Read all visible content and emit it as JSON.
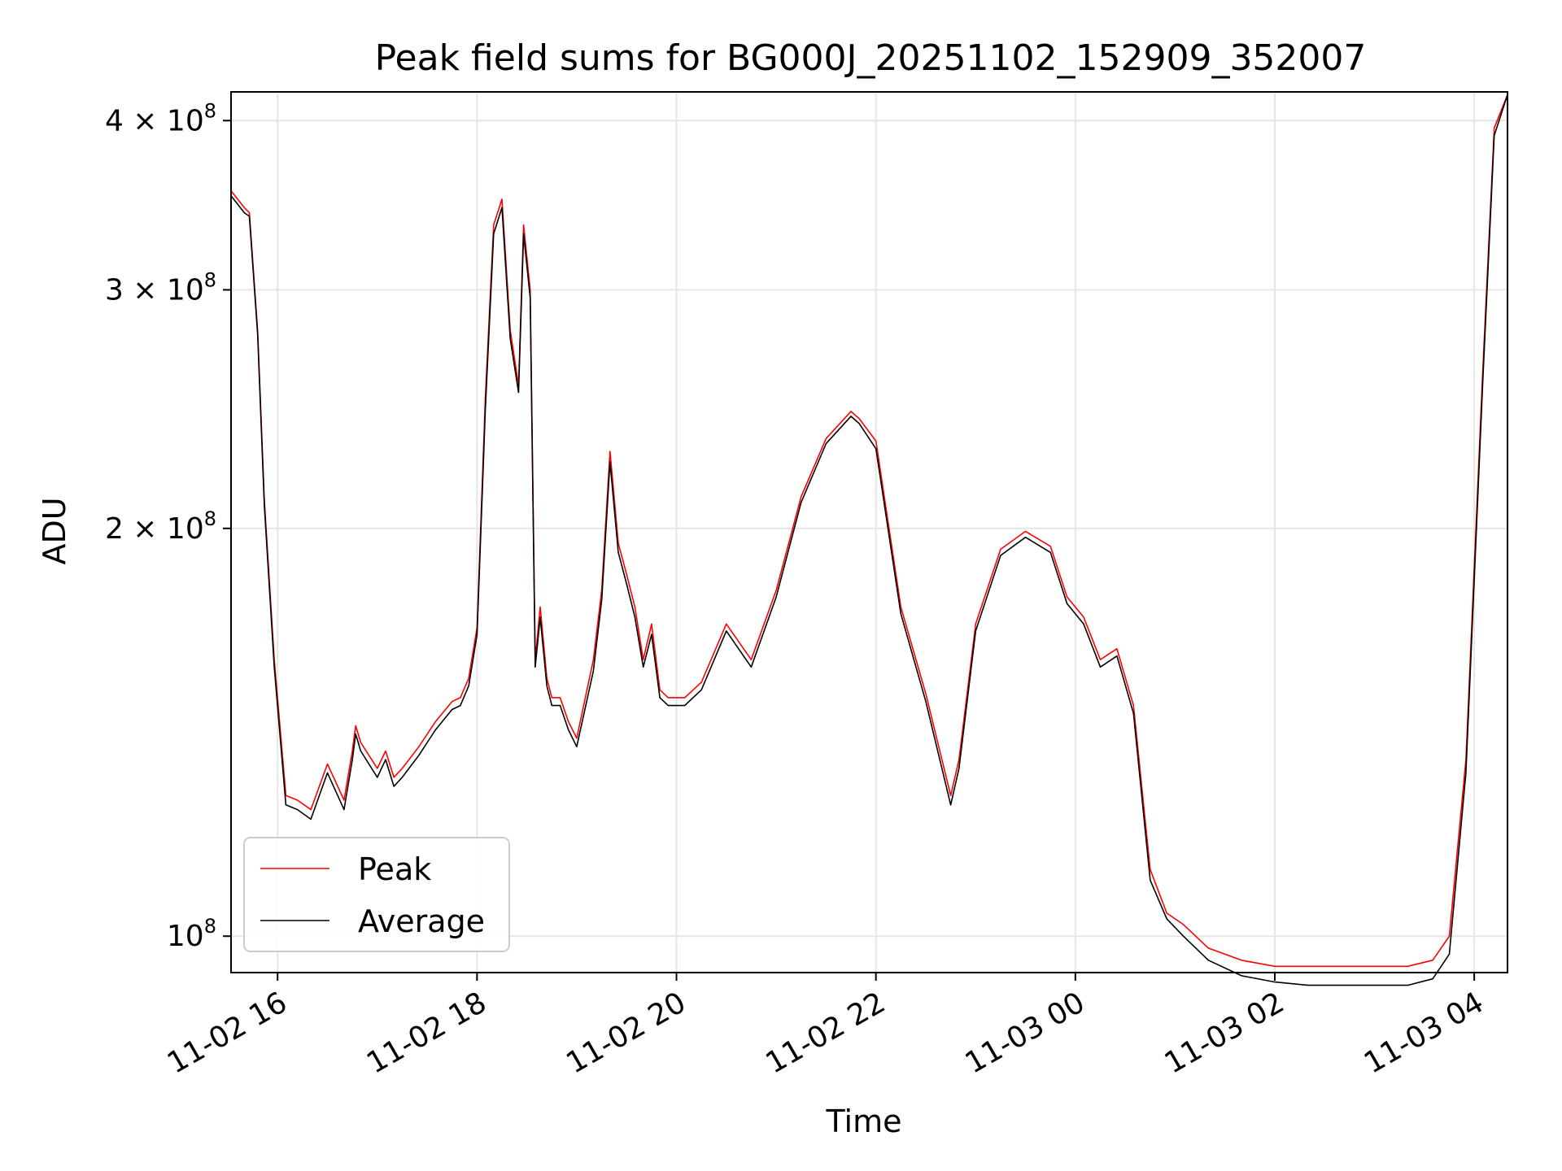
{
  "chart_data": {
    "type": "line",
    "title": "Peak field sums for BG000J_20251102_152909_352007",
    "xlabel": "Time",
    "ylabel": "ADU",
    "x_range": [
      "2025-11-02 15:32",
      "2025-11-03 04:20"
    ],
    "y_scale": "log",
    "ylim": [
      94000000,
      420000000
    ],
    "grid": true,
    "legend_position": "lower-left",
    "x_ticks": [
      "11-02 16",
      "11-02 18",
      "11-02 20",
      "11-02 22",
      "11-03 00",
      "11-03 02",
      "11-03 04"
    ],
    "y_ticks": [
      {
        "value": 100000000,
        "mantissa": "",
        "base": "10",
        "exp": "8"
      },
      {
        "value": 200000000,
        "mantissa": "2",
        "base": "10",
        "exp": "8"
      },
      {
        "value": 300000000,
        "mantissa": "3",
        "base": "10",
        "exp": "8"
      },
      {
        "value": 400000000,
        "mantissa": "4",
        "base": "10",
        "exp": "8"
      }
    ],
    "series": [
      {
        "name": "Peak",
        "color": "#ff0000",
        "x": [
          "15:32",
          "15:40",
          "15:43",
          "15:48",
          "15:52",
          "15:58",
          "16:05",
          "16:12",
          "16:20",
          "16:30",
          "16:40",
          "16:45",
          "16:47",
          "16:50",
          "17:00",
          "17:05",
          "17:10",
          "17:15",
          "17:25",
          "17:35",
          "17:45",
          "17:50",
          "17:55",
          "18:00",
          "18:05",
          "18:10",
          "18:15",
          "18:20",
          "18:25",
          "18:28",
          "18:32",
          "18:35",
          "18:38",
          "18:42",
          "18:45",
          "18:50",
          "18:55",
          "19:00",
          "19:10",
          "19:15",
          "19:20",
          "19:25",
          "19:30",
          "19:35",
          "19:40",
          "19:45",
          "19:50",
          "19:55",
          "20:05",
          "20:15",
          "20:30",
          "20:45",
          "21:00",
          "21:15",
          "21:30",
          "21:45",
          "21:50",
          "22:00",
          "22:15",
          "22:30",
          "22:45",
          "22:50",
          "23:00",
          "23:15",
          "23:30",
          "23:45",
          "23:55",
          "00:05",
          "00:15",
          "00:25",
          "00:35",
          "00:45",
          "00:55",
          "01:05",
          "01:20",
          "01:40",
          "02:00",
          "02:20",
          "02:40",
          "03:00",
          "03:20",
          "03:35",
          "03:45",
          "03:55",
          "04:05",
          "04:12",
          "04:20"
        ],
        "values": [
          355000000,
          345000000,
          342000000,
          280000000,
          210000000,
          160000000,
          127000000,
          126000000,
          124000000,
          134000000,
          126000000,
          137000000,
          143000000,
          139000000,
          133000000,
          137000000,
          131000000,
          133000000,
          138000000,
          144000000,
          149000000,
          150000000,
          155000000,
          169000000,
          250000000,
          335000000,
          350000000,
          280000000,
          255000000,
          335000000,
          300000000,
          160000000,
          175000000,
          155000000,
          150000000,
          150000000,
          144000000,
          140000000,
          160000000,
          180000000,
          228000000,
          195000000,
          185000000,
          175000000,
          160000000,
          170000000,
          152000000,
          150000000,
          150000000,
          154000000,
          170000000,
          160000000,
          180000000,
          211000000,
          233000000,
          244000000,
          241000000,
          232000000,
          175000000,
          151000000,
          127000000,
          135000000,
          170000000,
          193000000,
          199000000,
          194000000,
          178000000,
          172000000,
          160000000,
          163000000,
          148000000,
          112000000,
          104000000,
          102000000,
          98000000,
          96000000,
          95000000,
          95000000,
          95000000,
          95000000,
          95000000,
          96000000,
          100000000,
          135000000,
          260000000,
          395000000,
          418000000
        ]
      },
      {
        "name": "Average",
        "color": "#000000",
        "x": [
          "15:32",
          "15:40",
          "15:43",
          "15:48",
          "15:52",
          "15:58",
          "16:05",
          "16:12",
          "16:20",
          "16:30",
          "16:40",
          "16:45",
          "16:47",
          "16:50",
          "17:00",
          "17:05",
          "17:10",
          "17:15",
          "17:25",
          "17:35",
          "17:45",
          "17:50",
          "17:55",
          "18:00",
          "18:05",
          "18:10",
          "18:15",
          "18:20",
          "18:25",
          "18:28",
          "18:32",
          "18:35",
          "18:38",
          "18:42",
          "18:45",
          "18:50",
          "18:55",
          "19:00",
          "19:10",
          "19:15",
          "19:20",
          "19:25",
          "19:30",
          "19:35",
          "19:40",
          "19:45",
          "19:50",
          "19:55",
          "20:05",
          "20:15",
          "20:30",
          "20:45",
          "21:00",
          "21:15",
          "21:30",
          "21:45",
          "21:50",
          "22:00",
          "22:15",
          "22:30",
          "22:45",
          "22:50",
          "23:00",
          "23:15",
          "23:30",
          "23:45",
          "23:55",
          "00:05",
          "00:15",
          "00:25",
          "00:35",
          "00:45",
          "00:55",
          "01:05",
          "01:20",
          "01:40",
          "02:00",
          "02:20",
          "02:40",
          "03:00",
          "03:20",
          "03:35",
          "03:45",
          "03:55",
          "04:05",
          "04:12",
          "04:20"
        ],
        "values": [
          352000000,
          342000000,
          340000000,
          278000000,
          208000000,
          158000000,
          125000000,
          124000000,
          122000000,
          132000000,
          124000000,
          135000000,
          141000000,
          137000000,
          131000000,
          135000000,
          129000000,
          131000000,
          136000000,
          142000000,
          147000000,
          148000000,
          153000000,
          167000000,
          245000000,
          330000000,
          345000000,
          276000000,
          252000000,
          330000000,
          296000000,
          158000000,
          172000000,
          153000000,
          148000000,
          148000000,
          142000000,
          138000000,
          157000000,
          177000000,
          224000000,
          192000000,
          182000000,
          172000000,
          158000000,
          167000000,
          150000000,
          148000000,
          148000000,
          152000000,
          168000000,
          158000000,
          178000000,
          209000000,
          231000000,
          242000000,
          239000000,
          229000000,
          173000000,
          149000000,
          125000000,
          133000000,
          168000000,
          191000000,
          197000000,
          192000000,
          176000000,
          170000000,
          158000000,
          161000000,
          146000000,
          110000000,
          103000000,
          100000000,
          96000000,
          93500000,
          92500000,
          92000000,
          92000000,
          92000000,
          92000000,
          93000000,
          97000000,
          132000000,
          255000000,
          390000000,
          418000000
        ]
      }
    ]
  }
}
